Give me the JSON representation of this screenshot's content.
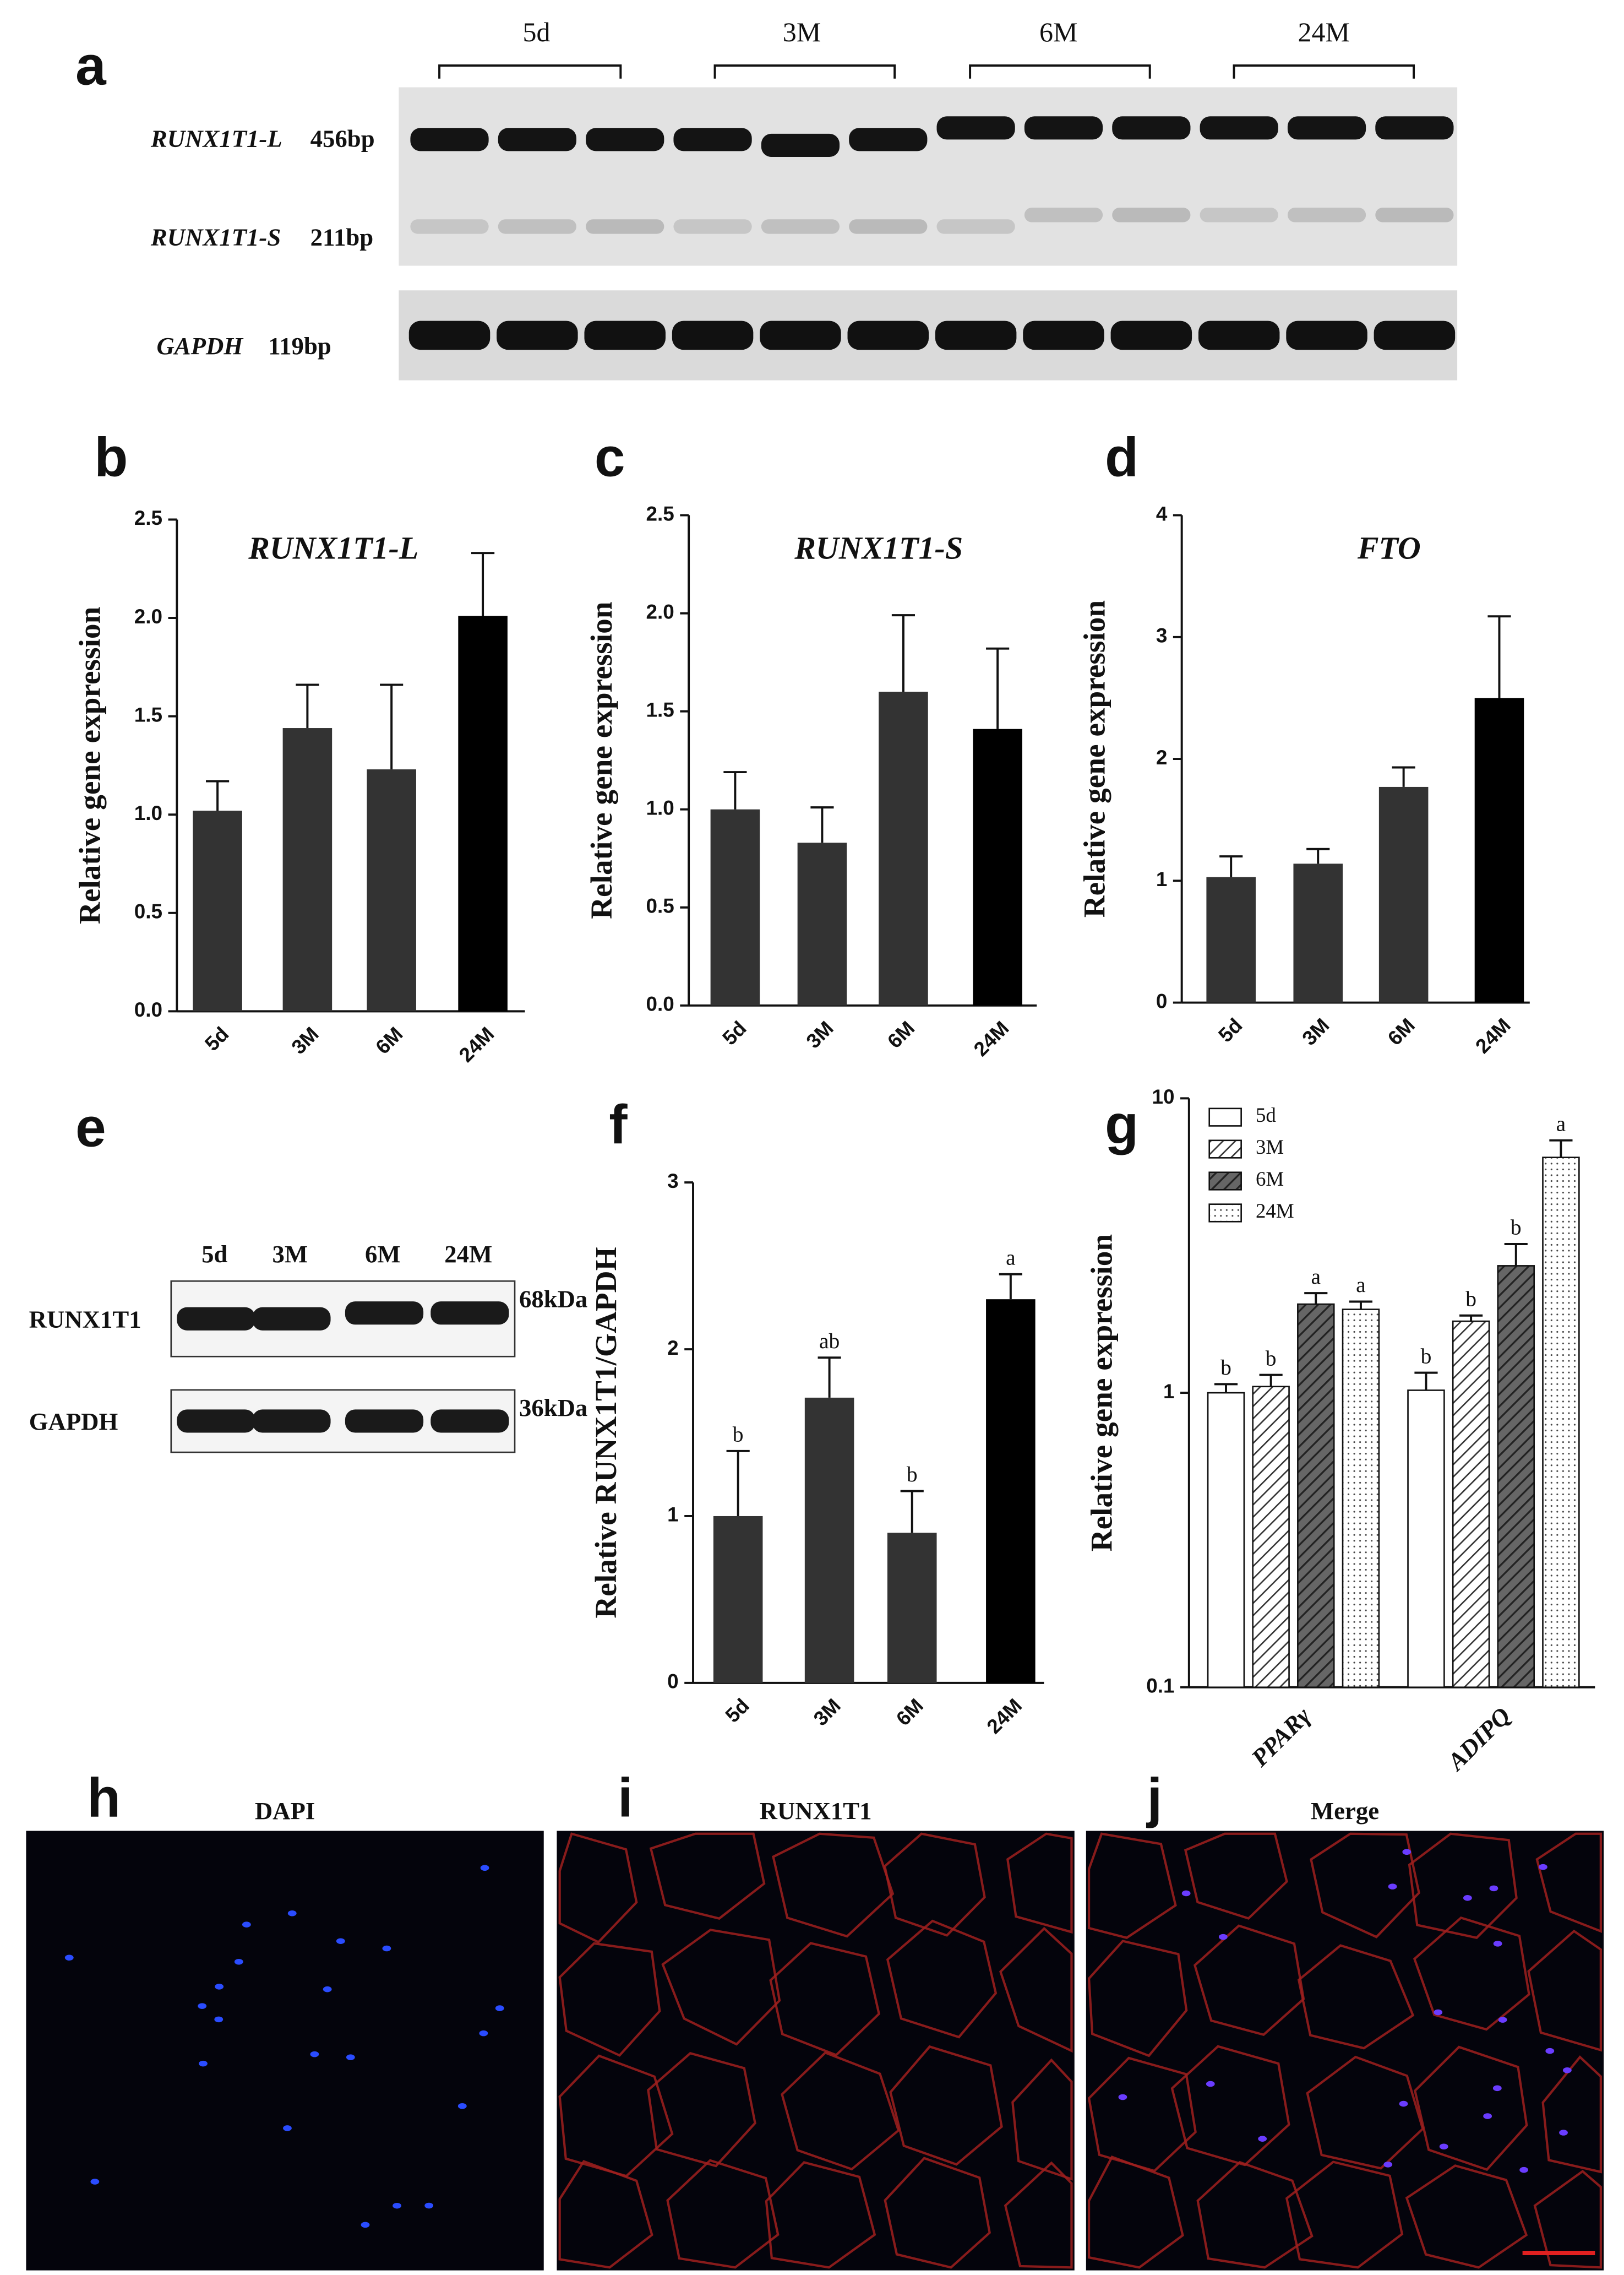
{
  "gel": {
    "panel": "a",
    "groups": [
      "5d",
      "3M",
      "6M",
      "24M"
    ],
    "rows": [
      {
        "gene": "RUNX1T1-L",
        "size": "456bp"
      },
      {
        "gene": "RUNX1T1-S",
        "size": "211bp"
      },
      {
        "gene": "GAPDH",
        "size": "119bp"
      }
    ]
  },
  "western": {
    "panel": "e",
    "lanes": [
      "5d",
      "3M",
      "6M",
      "24M"
    ],
    "rows": [
      {
        "protein": "RUNX1T1",
        "size": "68kDa"
      },
      {
        "protein": "GAPDH",
        "size": "36kDa"
      }
    ]
  },
  "fluorescence": [
    {
      "panel": "h",
      "title": "DAPI"
    },
    {
      "panel": "i",
      "title": "RUNX1T1"
    },
    {
      "panel": "j",
      "title": "Merge"
    }
  ],
  "chart_data": [
    {
      "type": "bar",
      "panel": "b",
      "title": "RUNX1T1-L",
      "ylabel": "Relative gene expression",
      "categories": [
        "5d",
        "3M",
        "6M",
        "24M"
      ],
      "values": [
        1.02,
        1.44,
        1.23,
        2.01
      ],
      "errors": [
        0.15,
        0.22,
        0.43,
        0.32
      ],
      "colors": [
        "#333333",
        "#333333",
        "#333333",
        "#000000"
      ],
      "ylim": [
        0,
        2.5
      ],
      "yticks": [
        {
          "value": 0,
          "label": "0.0"
        },
        0.5,
        {
          "value": 1,
          "label": "1.0"
        },
        1.5,
        {
          "value": 2,
          "label": "2.0"
        },
        2.5
      ]
    },
    {
      "type": "bar",
      "panel": "c",
      "title": "RUNX1T1-S",
      "ylabel": "Relative gene expression",
      "categories": [
        "5d",
        "3M",
        "6M",
        "24M"
      ],
      "values": [
        1.0,
        0.83,
        1.6,
        1.41
      ],
      "errors": [
        0.19,
        0.18,
        0.39,
        0.41
      ],
      "colors": [
        "#333333",
        "#333333",
        "#333333",
        "#000000"
      ],
      "ylim": [
        0,
        2.5
      ],
      "yticks": [
        {
          "value": 0,
          "label": "0.0"
        },
        0.5,
        {
          "value": 1,
          "label": "1.0"
        },
        1.5,
        {
          "value": 2,
          "label": "2.0"
        },
        2.5
      ]
    },
    {
      "type": "bar",
      "panel": "d",
      "title": "FTO",
      "ylabel": "Relative gene expression",
      "categories": [
        "5d",
        "3M",
        "6M",
        "24M"
      ],
      "values": [
        1.03,
        1.14,
        1.77,
        2.5
      ],
      "errors": [
        0.17,
        0.12,
        0.16,
        0.67
      ],
      "colors": [
        "#333333",
        "#333333",
        "#333333",
        "#000000"
      ],
      "ylim": [
        0,
        4
      ],
      "yticks": [
        0,
        1,
        2,
        3,
        4
      ]
    },
    {
      "type": "bar",
      "panel": "f",
      "ylabel": "Relative RUNX1T1/GAPDH",
      "categories": [
        "5d",
        "3M",
        "6M",
        "24M"
      ],
      "values": [
        1.0,
        1.71,
        0.9,
        2.3
      ],
      "errors": [
        0.39,
        0.24,
        0.25,
        0.15
      ],
      "annotations": [
        "b",
        "ab",
        "b",
        "a"
      ],
      "colors": [
        "#333333",
        "#333333",
        "#333333",
        "#000000"
      ],
      "ylim": [
        0,
        3
      ],
      "yticks": [
        0,
        1,
        2,
        3
      ]
    },
    {
      "type": "grouped_bar",
      "panel": "g",
      "ylabel": "Relative gene expression",
      "log_scale": true,
      "legend": "top-left",
      "categories": [
        "PPARγ",
        "ADIPQ"
      ],
      "ylim": [
        0.1,
        10
      ],
      "yticks": [
        0.1,
        1,
        10
      ],
      "series": [
        {
          "name": "5d",
          "color": "#ffffff",
          "pattern": "none",
          "values": [
            1.0,
            1.02
          ],
          "errors": [
            0.07,
            0.15
          ],
          "annotations": [
            "b",
            "b"
          ]
        },
        {
          "name": "3M",
          "color": "#ffffff",
          "pattern": "hatch",
          "values": [
            1.05,
            1.75
          ],
          "errors": [
            0.1,
            0.08
          ],
          "annotations": [
            "b",
            "b"
          ]
        },
        {
          "name": "6M",
          "color": "#666666",
          "pattern": "hatch",
          "values": [
            2.0,
            2.7
          ],
          "errors": [
            0.18,
            0.5
          ],
          "annotations": [
            "a",
            "b"
          ]
        },
        {
          "name": "24M",
          "color": "#ffffff",
          "pattern": "dots",
          "values": [
            1.92,
            6.3
          ],
          "errors": [
            0.12,
            0.9
          ],
          "annotations": [
            "a",
            "a"
          ]
        }
      ]
    }
  ]
}
